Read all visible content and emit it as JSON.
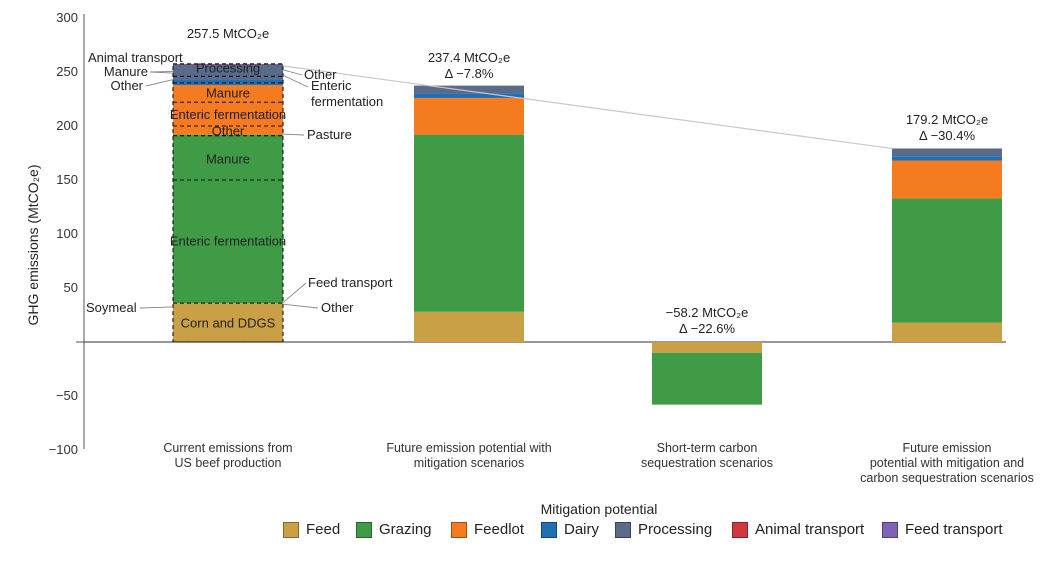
{
  "chart_data": {
    "type": "bar",
    "stacked": true,
    "ylabel": "GHG emissions (MtCO₂e)",
    "xlabel": "Mitigation potential",
    "ylim": [
      -100,
      300
    ],
    "yticks": [
      300,
      250,
      200,
      150,
      100,
      50,
      "−",
      -50,
      -100
    ],
    "ytick_labels": [
      "300",
      "250",
      "200",
      "150",
      "100",
      "50",
      "",
      "−50",
      "−100"
    ],
    "categories": [
      "Current emissions from US beef production",
      "Future emission potential with mitigation scenarios",
      "Short-term carbon sequestration scenarios",
      "Future emission potential with mitigation and carbon sequestration scenarios"
    ],
    "category_lines": [
      [
        "Current emissions from",
        "US beef production"
      ],
      [
        "Future emission potential with",
        "mitigation scenarios"
      ],
      [
        "Short-term carbon",
        "sequestration scenarios"
      ],
      [
        "Future emission",
        "potential with mitigation and",
        "carbon sequestration scenarios"
      ]
    ],
    "totals": [
      {
        "value": "257.5",
        "unit": "MtCO₂e",
        "delta": ""
      },
      {
        "value": "237.4",
        "unit": "MtCO₂e",
        "delta": "Δ −7.8%"
      },
      {
        "value": "−58.2",
        "unit": "MtCO₂e",
        "delta": "Δ −22.6%"
      },
      {
        "value": "179.2",
        "unit": "MtCO₂e",
        "delta": "Δ −30.4%"
      }
    ],
    "series": [
      {
        "name": "Feed",
        "color": "#c9a046",
        "values": [
          36,
          28,
          -10,
          18
        ]
      },
      {
        "name": "Grazing",
        "color": "#3f9b45",
        "values": [
          156,
          164,
          -48,
          115
        ]
      },
      {
        "name": "Feedlot",
        "color": "#f47b20",
        "values": [
          46,
          34,
          0,
          35
        ]
      },
      {
        "name": "Dairy",
        "color": "#1f6fb2",
        "values": [
          5,
          4,
          0,
          4
        ]
      },
      {
        "name": "Processing",
        "color": "#5a6a8a",
        "values": [
          14,
          7.4,
          0,
          7.2
        ]
      },
      {
        "name": "Animal transport",
        "color": "#d1373f",
        "values": [
          0.3,
          0,
          0,
          0
        ]
      },
      {
        "name": "Feed transport",
        "color": "#7f63b8",
        "values": [
          0.2,
          0,
          0,
          0
        ]
      }
    ],
    "breakdown_current": {
      "note_segments": [
        {
          "label": "Corn and DDGS",
          "from": 0,
          "to": 31
        },
        {
          "label": "Soymeal",
          "from": 31,
          "to": 34
        },
        {
          "label": "Other",
          "from": 34,
          "to": 36
        },
        {
          "label": "Feed transport",
          "from": 36,
          "to": 37
        },
        {
          "label": "Enteric fermentation",
          "from": 37,
          "to": 150
        },
        {
          "label": "Manure",
          "from": 150,
          "to": 191
        },
        {
          "label": "Pasture",
          "from": 191,
          "to": 194
        },
        {
          "label": "Other",
          "from": 194,
          "to": 200
        },
        {
          "label": "Enteric fermentation",
          "from": 200,
          "to": 222
        },
        {
          "label": "Manure",
          "from": 222,
          "to": 240
        },
        {
          "label": "Other",
          "from": 240,
          "to": 246
        },
        {
          "label": "Enteric fermentation",
          "from": 246,
          "to": 248
        },
        {
          "label": "Manure",
          "from": 248,
          "to": 250
        },
        {
          "label": "Animal transport",
          "from": 250,
          "to": 251
        },
        {
          "label": "Other",
          "from": 251,
          "to": 252
        },
        {
          "label": "Processing",
          "from": 252,
          "to": 257.5
        }
      ],
      "callouts": {
        "animal_transport": "Animal transport",
        "manure": "Manure",
        "other_left": "Other",
        "processing": "Processing",
        "other_right": "Other",
        "enteric_right": [
          "Enteric",
          "fermentation"
        ],
        "manure_mid": "Manure",
        "enteric_mid": "Enteric fermentation",
        "other_mid": "Other",
        "pasture": "Pasture",
        "manure_grazing": "Manure",
        "enteric_grazing": "Enteric fermentation",
        "feed_transport": "Feed transport",
        "soymeal": "Soymeal",
        "other_feed": "Other",
        "corn": "Corn and DDGS"
      }
    }
  }
}
